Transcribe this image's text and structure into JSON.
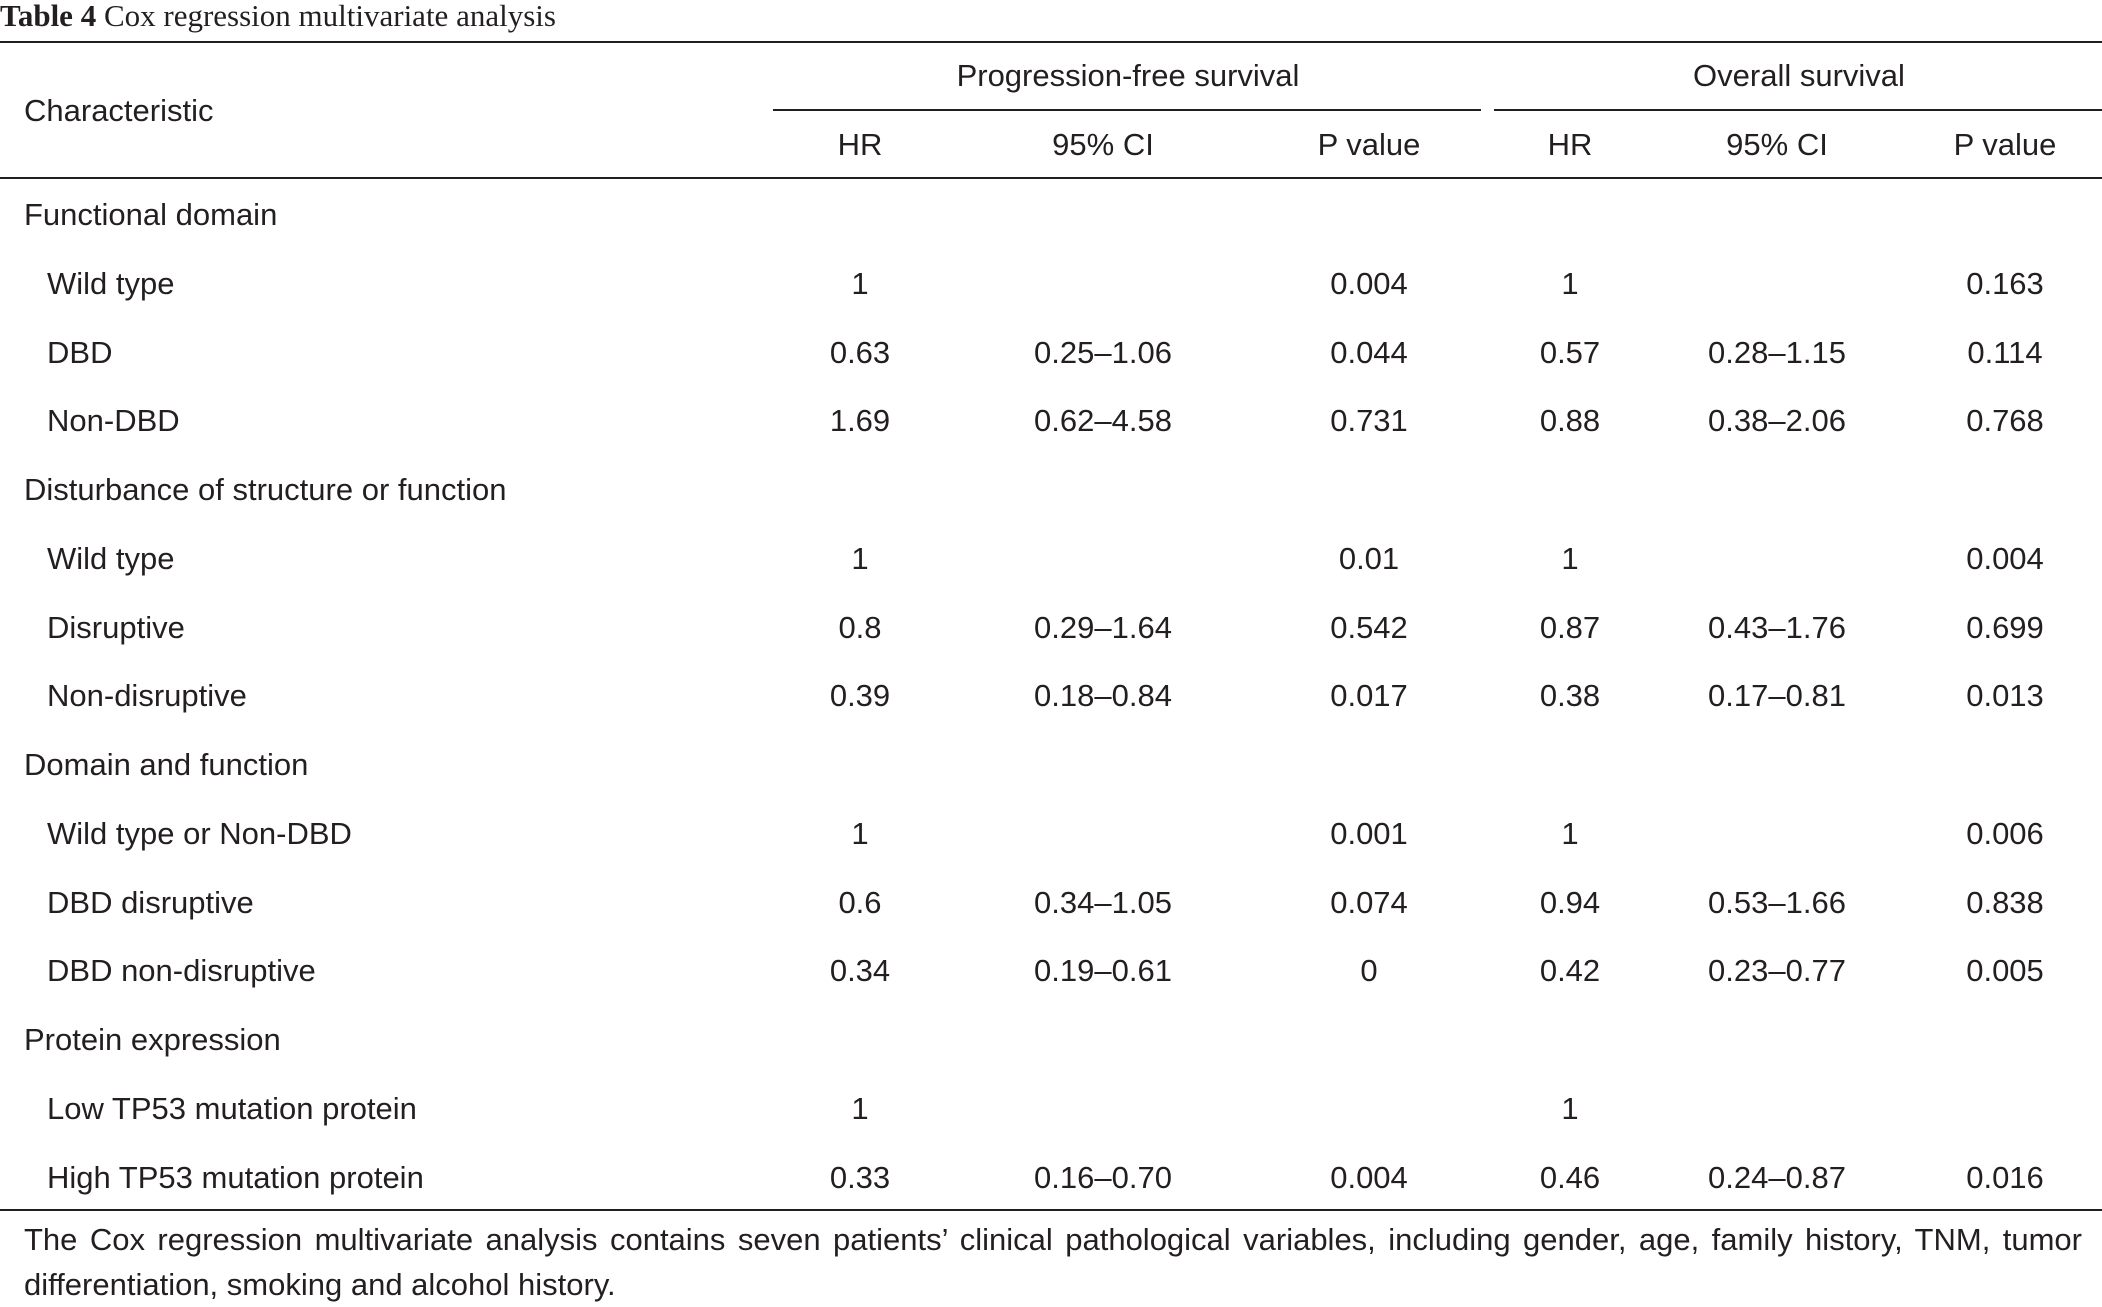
{
  "caption": {
    "label": "Table 4",
    "text": "Cox regression multivariate analysis"
  },
  "header": {
    "characteristic": "Characteristic",
    "groups": [
      "Progression-free survival",
      "Overall survival"
    ],
    "columns": [
      "HR",
      "95% CI",
      "P value",
      "HR",
      "95% CI",
      "P value"
    ]
  },
  "rows": [
    {
      "type": "section",
      "label": "Functional domain",
      "values": [
        "",
        "",
        "",
        "",
        "",
        ""
      ]
    },
    {
      "type": "item",
      "label": "Wild type",
      "values": [
        "1",
        "",
        "0.004",
        "1",
        "",
        "0.163"
      ]
    },
    {
      "type": "item",
      "label": "DBD",
      "values": [
        "0.63",
        "0.25–1.06",
        "0.044",
        "0.57",
        "0.28–1.15",
        "0.114"
      ]
    },
    {
      "type": "item",
      "label": "Non-DBD",
      "values": [
        "1.69",
        "0.62–4.58",
        "0.731",
        "0.88",
        "0.38–2.06",
        "0.768"
      ]
    },
    {
      "type": "section",
      "label": "Disturbance of structure or function",
      "values": [
        "",
        "",
        "",
        "",
        "",
        ""
      ]
    },
    {
      "type": "item",
      "label": "Wild type",
      "values": [
        "1",
        "",
        "0.01",
        "1",
        "",
        "0.004"
      ]
    },
    {
      "type": "item",
      "label": "Disruptive",
      "values": [
        "0.8",
        "0.29–1.64",
        "0.542",
        "0.87",
        "0.43–1.76",
        "0.699"
      ]
    },
    {
      "type": "item",
      "label": "Non-disruptive",
      "values": [
        "0.39",
        "0.18–0.84",
        "0.017",
        "0.38",
        "0.17–0.81",
        "0.013"
      ]
    },
    {
      "type": "section",
      "label": "Domain and function",
      "values": [
        "",
        "",
        "",
        "",
        "",
        ""
      ]
    },
    {
      "type": "item",
      "label": "Wild type or Non-DBD",
      "values": [
        "1",
        "",
        "0.001",
        "1",
        "",
        "0.006"
      ]
    },
    {
      "type": "item",
      "label": "DBD disruptive",
      "values": [
        "0.6",
        "0.34–1.05",
        "0.074",
        "0.94",
        "0.53–1.66",
        "0.838"
      ]
    },
    {
      "type": "item",
      "label": "DBD non-disruptive",
      "values": [
        "0.34",
        "0.19–0.61",
        "0",
        "0.42",
        "0.23–0.77",
        "0.005"
      ]
    },
    {
      "type": "section",
      "label": "Protein expression",
      "values": [
        "",
        "",
        "",
        "",
        "",
        ""
      ]
    },
    {
      "type": "item",
      "label": "Low TP53 mutation protein",
      "values": [
        "1",
        "",
        "",
        "1",
        "",
        ""
      ]
    },
    {
      "type": "item",
      "label": "High TP53 mutation protein",
      "values": [
        "0.33",
        "0.16–0.70",
        "0.004",
        "0.46",
        "0.24–0.87",
        "0.016"
      ]
    }
  ],
  "footnote": "The Cox regression multivariate analysis contains seven patients’ clinical pathological variables, including gender, age, family history, TNM, tumor differentiation, smoking and alcohol history."
}
